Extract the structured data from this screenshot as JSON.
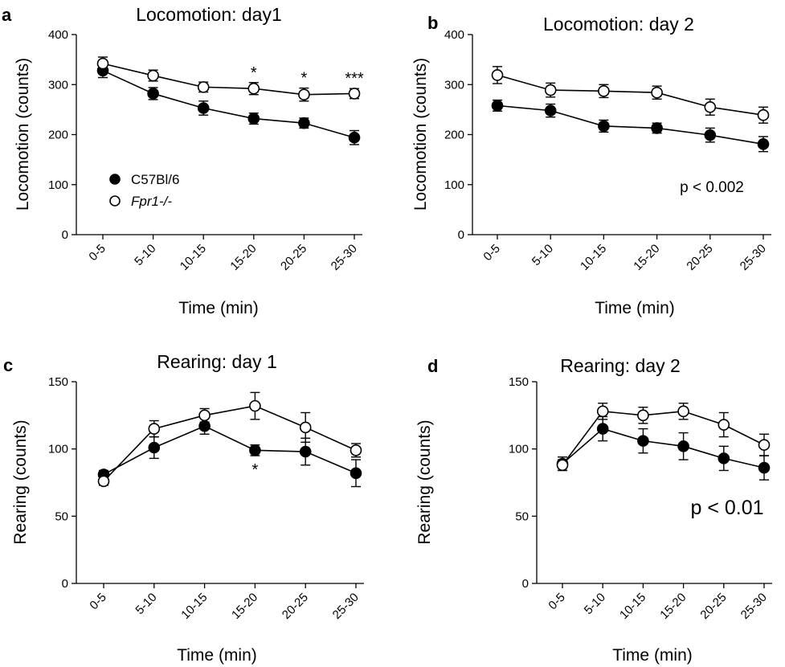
{
  "chart_data": [
    {
      "panel": "a",
      "type": "line",
      "title": "Locomotion: day1",
      "xlabel": "Time (min)",
      "ylabel": "Locomotion (counts)",
      "categories": [
        "0-5",
        "5-10",
        "10-15",
        "15-20",
        "20-25",
        "25-30"
      ],
      "ylim": [
        0,
        400
      ],
      "yticks": [
        0,
        100,
        200,
        300,
        400
      ],
      "series": [
        {
          "name": "C57Bl/6",
          "marker": "filled",
          "values": [
            328,
            282,
            253,
            232,
            223,
            194
          ],
          "errors": [
            14,
            12,
            14,
            11,
            10,
            14
          ]
        },
        {
          "name": "Fpr1-/-",
          "marker": "open",
          "values": [
            342,
            318,
            295,
            292,
            280,
            282
          ],
          "errors": [
            13,
            11,
            10,
            12,
            13,
            10
          ]
        }
      ],
      "significance": [
        {
          "category": "15-20",
          "label": "*"
        },
        {
          "category": "20-25",
          "label": "*"
        },
        {
          "category": "25-30",
          "label": "***"
        }
      ],
      "legend": [
        {
          "label": "C57Bl/6",
          "marker": "filled",
          "italic": false
        },
        {
          "label": "Fpr1-/-",
          "marker": "open",
          "italic": true
        }
      ],
      "annotation": ""
    },
    {
      "panel": "b",
      "type": "line",
      "title": "Locomotion: day 2",
      "xlabel": "Time (min)",
      "ylabel": "Locomotion (counts)",
      "categories": [
        "0-5",
        "5-10",
        "10-15",
        "15-20",
        "20-25",
        "25-30"
      ],
      "ylim": [
        0,
        400
      ],
      "yticks": [
        0,
        100,
        200,
        300,
        400
      ],
      "series": [
        {
          "name": "C57Bl/6",
          "marker": "filled",
          "values": [
            258,
            248,
            217,
            213,
            199,
            181
          ],
          "errors": [
            11,
            13,
            12,
            10,
            14,
            15
          ]
        },
        {
          "name": "Fpr1-/-",
          "marker": "open",
          "values": [
            319,
            289,
            287,
            284,
            255,
            239
          ],
          "errors": [
            17,
            14,
            13,
            13,
            16,
            16
          ]
        }
      ],
      "significance": [],
      "annotation": "p < 0.002"
    },
    {
      "panel": "c",
      "type": "line",
      "title": "Rearing: day 1",
      "xlabel": "Time (min)",
      "ylabel": "Rearing (counts)",
      "categories": [
        "0-5",
        "5-10",
        "10-15",
        "15-20",
        "20-25",
        "25-30"
      ],
      "ylim": [
        0,
        150
      ],
      "yticks": [
        0,
        50,
        100,
        150
      ],
      "series": [
        {
          "name": "C57Bl/6",
          "marker": "filled",
          "values": [
            81,
            101,
            117,
            99,
            98,
            82
          ],
          "errors": [
            3,
            8,
            6,
            4,
            10,
            10
          ]
        },
        {
          "name": "Fpr1-/-",
          "marker": "open",
          "values": [
            76,
            115,
            125,
            132,
            116,
            99
          ],
          "errors": [
            3,
            6,
            5,
            10,
            11,
            5
          ]
        }
      ],
      "significance": [
        {
          "category": "15-20",
          "label": "*",
          "position": "below"
        }
      ],
      "annotation": ""
    },
    {
      "panel": "d",
      "type": "line",
      "title": "Rearing: day 2",
      "xlabel": "Time (min)",
      "ylabel": "Rearing (counts)",
      "categories": [
        "0-5",
        "5-10",
        "10-15",
        "15-20",
        "20-25",
        "25-30"
      ],
      "ylim": [
        0,
        150
      ],
      "yticks": [
        0,
        50,
        100,
        150
      ],
      "series": [
        {
          "name": "C57Bl/6",
          "marker": "filled",
          "values": [
            89,
            115,
            106,
            102,
            93,
            86
          ],
          "errors": [
            5,
            9,
            9,
            10,
            9,
            9
          ]
        },
        {
          "name": "Fpr1-/-",
          "marker": "open",
          "values": [
            88,
            128,
            125,
            128,
            118,
            103
          ],
          "errors": [
            4,
            6,
            6,
            6,
            9,
            8
          ]
        }
      ],
      "significance": [],
      "annotation": "p < 0.01"
    }
  ]
}
